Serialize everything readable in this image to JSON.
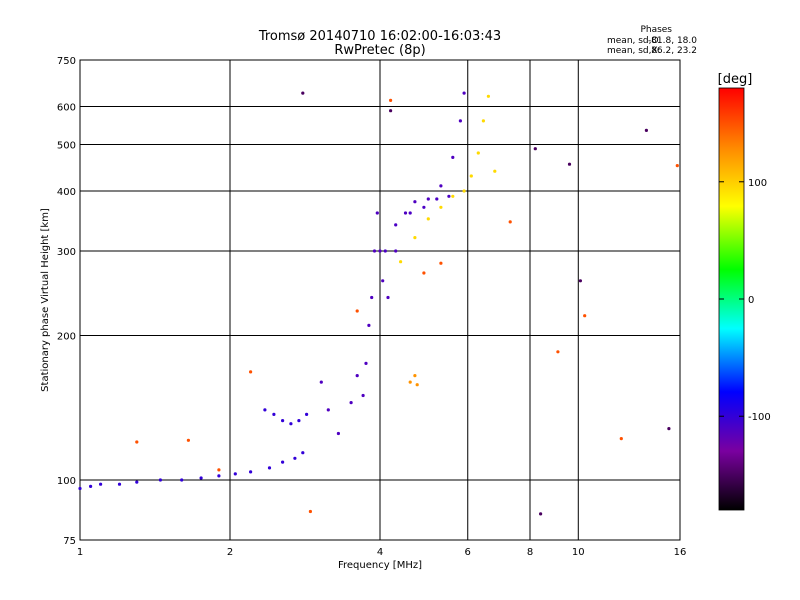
{
  "chart_data": {
    "type": "scatter",
    "title": "Tromsø 20140710 16:02:00-16:03:43",
    "subtitle": "RwPretec (8p)",
    "xlabel": "Frequency [MHz]",
    "ylabel": "Stationary phase Virtual Height [km]",
    "xscale": "log",
    "yscale": "log",
    "xlim": [
      1,
      16
    ],
    "ylim": [
      75,
      750
    ],
    "xticks": [
      1,
      2,
      4,
      6,
      8,
      10,
      16
    ],
    "yticks": [
      75,
      100,
      200,
      300,
      400,
      500,
      600,
      750
    ],
    "grid": true,
    "stats": {
      "title": "Phases",
      "o_label": "mean, sd,O:",
      "o_value": "-81.8, 18.0",
      "x_label": "mean, sd,X:",
      "x_value": "86.2, 23.2"
    },
    "colorbar": {
      "unit": "[deg]",
      "min": -180,
      "max": 180,
      "ticks": [
        -100,
        0,
        100
      ]
    },
    "series": [
      {
        "phase_deg": -100,
        "points": [
          [
            1.0,
            96
          ],
          [
            1.05,
            97
          ],
          [
            1.1,
            98
          ],
          [
            1.2,
            98
          ],
          [
            1.3,
            99
          ],
          [
            1.45,
            100
          ],
          [
            1.6,
            100
          ],
          [
            1.75,
            101
          ],
          [
            1.9,
            102
          ],
          [
            2.05,
            103
          ],
          [
            2.2,
            104
          ],
          [
            2.4,
            106
          ],
          [
            2.55,
            109
          ],
          [
            2.7,
            111
          ],
          [
            2.8,
            114
          ]
        ]
      },
      {
        "phase_deg": -100,
        "points": [
          [
            2.35,
            140
          ],
          [
            2.45,
            137
          ],
          [
            2.55,
            133
          ],
          [
            2.65,
            131
          ],
          [
            2.75,
            133
          ],
          [
            2.85,
            137
          ]
        ]
      },
      {
        "phase_deg": -112,
        "points": [
          [
            3.05,
            160
          ],
          [
            3.15,
            140
          ],
          [
            3.3,
            125
          ],
          [
            3.5,
            145
          ],
          [
            3.6,
            165
          ],
          [
            3.7,
            150
          ],
          [
            3.75,
            175
          ],
          [
            3.8,
            210
          ],
          [
            3.85,
            240
          ],
          [
            3.9,
            300
          ],
          [
            3.95,
            360
          ],
          [
            4.0,
            300
          ],
          [
            4.05,
            260
          ],
          [
            4.15,
            240
          ],
          [
            4.3,
            300
          ],
          [
            4.5,
            360
          ],
          [
            4.7,
            380
          ],
          [
            5.0,
            385
          ],
          [
            5.3,
            410
          ],
          [
            5.6,
            470
          ],
          [
            5.8,
            560
          ],
          [
            5.9,
            640
          ]
        ]
      },
      {
        "phase_deg": -110,
        "points": [
          [
            4.1,
            300
          ],
          [
            4.3,
            340
          ],
          [
            4.6,
            360
          ],
          [
            4.9,
            370
          ],
          [
            5.2,
            385
          ],
          [
            5.5,
            390
          ]
        ]
      },
      {
        "phase_deg": 95,
        "points": [
          [
            4.4,
            285
          ],
          [
            4.7,
            320
          ],
          [
            5.0,
            350
          ],
          [
            5.3,
            370
          ],
          [
            5.6,
            390
          ],
          [
            5.9,
            400
          ],
          [
            6.1,
            430
          ],
          [
            6.3,
            480
          ],
          [
            6.45,
            560
          ],
          [
            6.6,
            630
          ],
          [
            6.8,
            440
          ]
        ]
      },
      {
        "phase_deg": 125,
        "points": [
          [
            4.6,
            160
          ],
          [
            4.7,
            165
          ],
          [
            4.75,
            158
          ]
        ]
      },
      {
        "phase_deg": 150,
        "points": [
          [
            1.3,
            120
          ],
          [
            1.65,
            121
          ],
          [
            1.9,
            105
          ],
          [
            2.2,
            168
          ],
          [
            2.9,
            86
          ],
          [
            3.6,
            225
          ],
          [
            4.2,
            618
          ],
          [
            4.9,
            270
          ],
          [
            5.3,
            283
          ],
          [
            7.3,
            345
          ],
          [
            9.1,
            185
          ],
          [
            10.3,
            220
          ],
          [
            12.2,
            122
          ],
          [
            15.8,
            452
          ]
        ]
      },
      {
        "phase_deg": -150,
        "points": [
          [
            2.8,
            640
          ],
          [
            4.2,
            588
          ],
          [
            8.2,
            490
          ],
          [
            8.4,
            85
          ],
          [
            9.6,
            455
          ],
          [
            10.1,
            260
          ],
          [
            13.7,
            535
          ],
          [
            15.2,
            128
          ]
        ]
      }
    ]
  }
}
